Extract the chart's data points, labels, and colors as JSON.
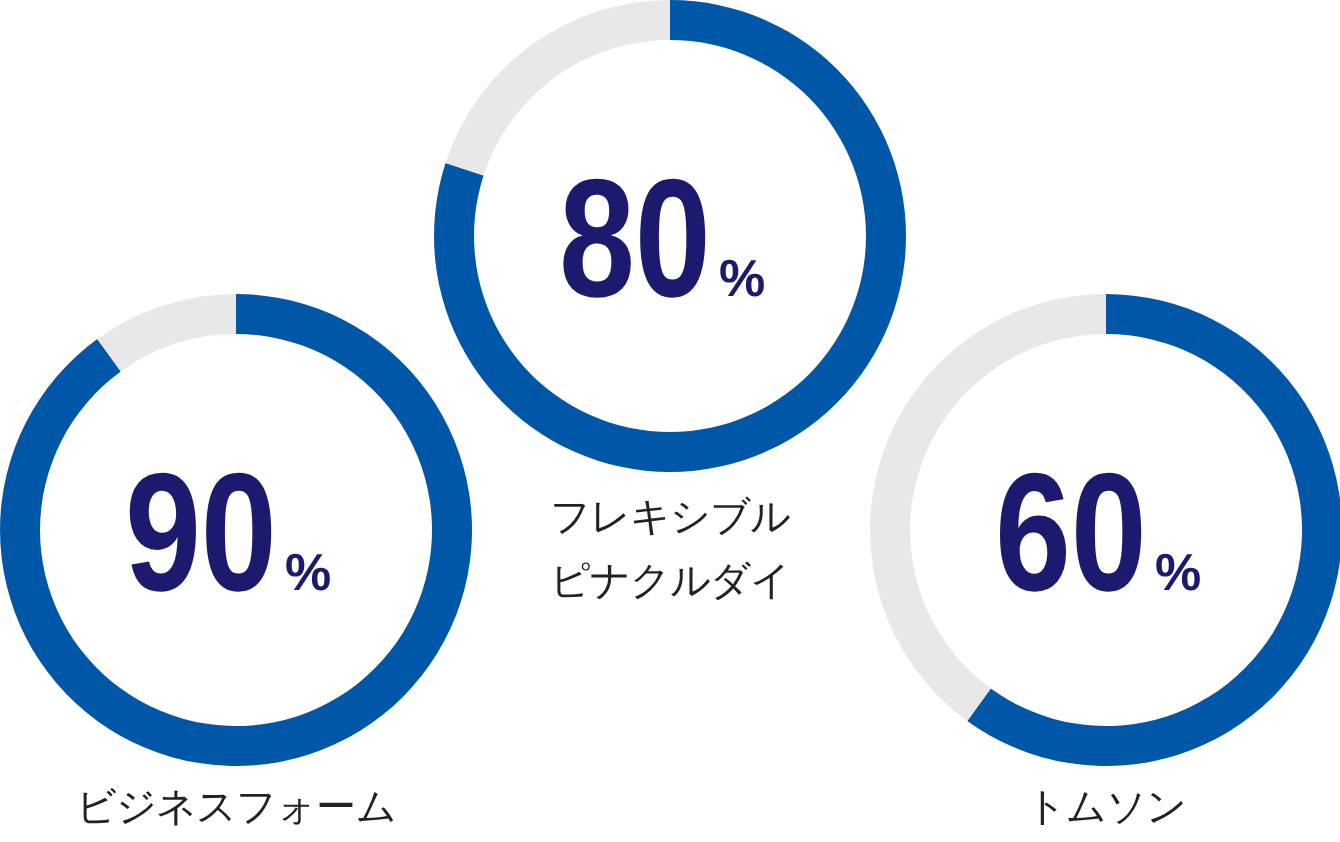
{
  "chart_data": [
    {
      "type": "donut",
      "title": "ビジネスフォーム",
      "categories": [
        null,
        null
      ],
      "values": [
        90,
        10
      ],
      "colors": [
        "#0057a8",
        "#e8e8e8"
      ],
      "annotations": [
        "90%"
      ]
    },
    {
      "type": "donut",
      "title": "フレキシブルピナクルダイ",
      "categories": [
        null,
        null
      ],
      "values": [
        80,
        20
      ],
      "colors": [
        "#0057a8",
        "#e8e8e8"
      ],
      "annotations": [
        "80%"
      ]
    },
    {
      "type": "donut",
      "title": "トムソン",
      "categories": [
        null,
        null
      ],
      "values": [
        60,
        40
      ],
      "colors": [
        "#0057a8",
        "#e8e8e8"
      ],
      "annotations": [
        "60%"
      ]
    }
  ]
}
